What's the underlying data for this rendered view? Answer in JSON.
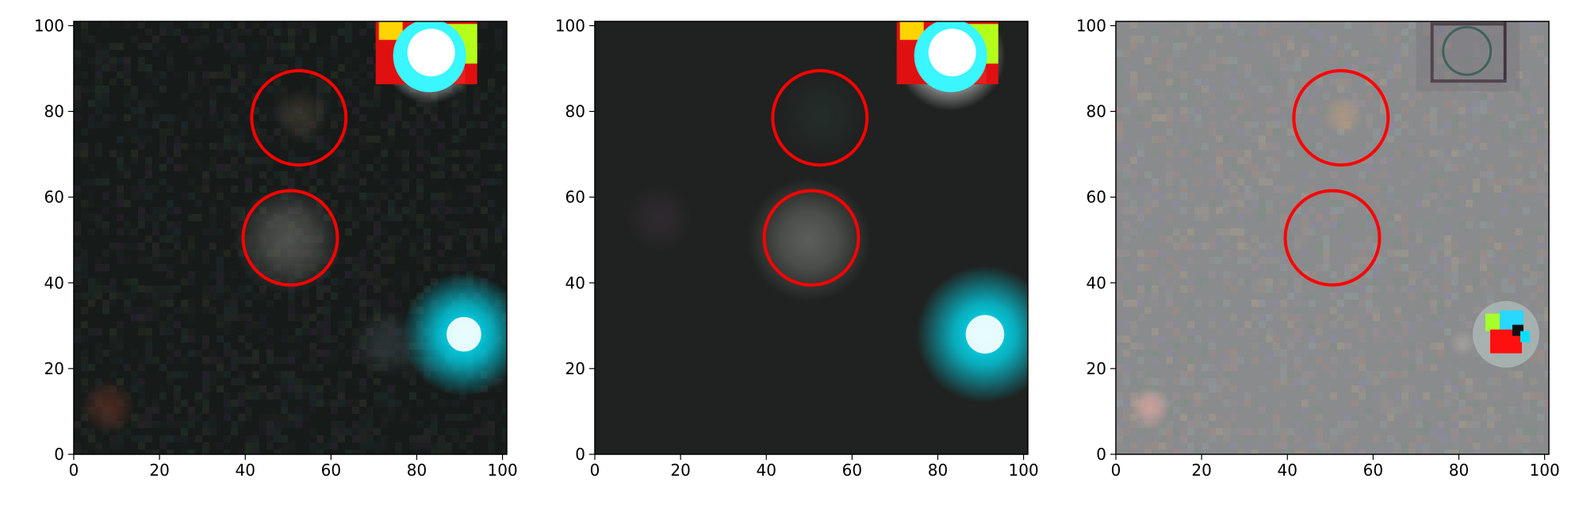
{
  "figure": {
    "panels": [
      {
        "id": "data",
        "palette": {
          "background": "#161a19",
          "noise": "#2a3230"
        },
        "blobs": [
          {
            "x": 50,
            "y": 50,
            "r": 8,
            "color": "#7d7f77",
            "opacity": 0.55
          },
          {
            "x": 53,
            "y": 79,
            "r": 4,
            "color": "#5a4f3d",
            "opacity": 0.45
          },
          {
            "x": 91,
            "y": 28,
            "r": 9,
            "color": "#00e8ff",
            "opacity": 1.0
          },
          {
            "x": 83,
            "y": 93,
            "r": 7,
            "color": "#ffffff",
            "opacity": 1.0
          },
          {
            "x": 8,
            "y": 11,
            "r": 4,
            "color": "#6a3325",
            "opacity": 0.6
          },
          {
            "x": 73,
            "y": 26,
            "r": 5,
            "color": "#4a5a60",
            "opacity": 0.4
          }
        ],
        "saturated_star": {
          "x": 83,
          "y": 93
        },
        "circles": [
          {
            "x": 52.5,
            "y": 78.5,
            "r": 11
          },
          {
            "x": 50.5,
            "y": 50.5,
            "r": 11
          }
        ]
      },
      {
        "id": "model",
        "palette": {
          "background": "#1f2220",
          "noise": "#1f2220"
        },
        "blobs": [
          {
            "x": 50,
            "y": 50,
            "r": 9,
            "color": "#8f918b",
            "opacity": 0.55
          },
          {
            "x": 53,
            "y": 79,
            "r": 6,
            "color": "#26342f",
            "opacity": 0.6
          },
          {
            "x": 91,
            "y": 28,
            "r": 10,
            "color": "#00e8ff",
            "opacity": 1.0
          },
          {
            "x": 83,
            "y": 93,
            "r": 8,
            "color": "#ffffff",
            "opacity": 1.0
          },
          {
            "x": 15,
            "y": 55,
            "r": 5,
            "color": "#3a2f3a",
            "opacity": 0.6
          }
        ],
        "saturated_star": {
          "x": 83,
          "y": 93
        },
        "circles": [
          {
            "x": 52.5,
            "y": 78.5,
            "r": 11
          },
          {
            "x": 50.5,
            "y": 50.5,
            "r": 11
          }
        ]
      },
      {
        "id": "residual",
        "palette": {
          "background": "#8a8b8c",
          "noise": "#a09d9a"
        },
        "blobs": [
          {
            "x": 53,
            "y": 79,
            "r": 3,
            "color": "#c8a07a",
            "opacity": 0.5
          },
          {
            "x": 8,
            "y": 11,
            "r": 3,
            "color": "#d9a6a0",
            "opacity": 0.8
          },
          {
            "x": 81,
            "y": 26,
            "r": 2,
            "color": "#b0a9a2",
            "opacity": 0.6
          }
        ],
        "residual_star": {
          "x": 91,
          "y": 28
        },
        "ghost_square": {
          "x": 83,
          "y": 93
        },
        "circles": [
          {
            "x": 52.5,
            "y": 78.5,
            "r": 11
          },
          {
            "x": 50.5,
            "y": 50.5,
            "r": 11
          }
        ]
      }
    ],
    "axes": {
      "xlim": [
        0,
        101
      ],
      "ylim": [
        0,
        101
      ],
      "xticks": [
        "0",
        "20",
        "40",
        "60",
        "80",
        "100"
      ],
      "yticks": [
        "0",
        "20",
        "40",
        "60",
        "80",
        "100"
      ],
      "tick_values": [
        0,
        20,
        40,
        60,
        80,
        100
      ]
    },
    "colors": {
      "circle": "#ff0000",
      "axis": "#000000"
    }
  }
}
